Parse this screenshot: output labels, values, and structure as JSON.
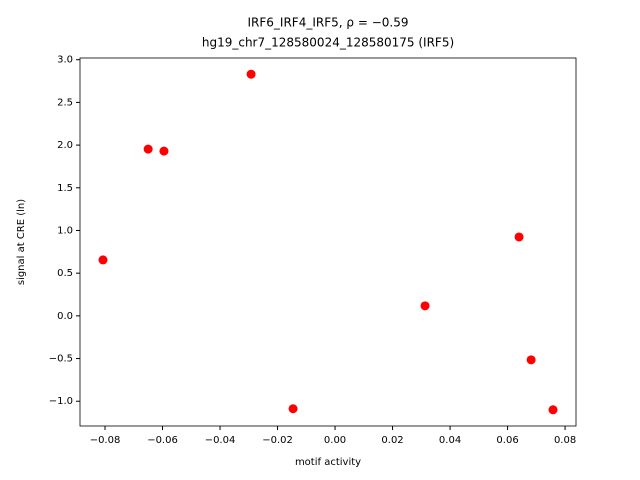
{
  "chart_data": {
    "type": "scatter",
    "title": "IRF6_IRF4_IRF5, ρ = −0.59",
    "subtitle": "hg19_chr7_128580024_128580175 (IRF5)",
    "x_label": "motif activity",
    "y_label": "signal at CRE (ln)",
    "color": "#ff0000",
    "x": [
      -0.0807,
      -0.065,
      -0.0595,
      -0.0292,
      -0.0146,
      0.0313,
      0.064,
      0.0682,
      0.0758
    ],
    "values": [
      0.655,
      1.953,
      1.93,
      2.83,
      -1.088,
      0.117,
      0.924,
      -0.515,
      -1.1
    ],
    "xlim": [
      -0.0887,
      0.0838
    ],
    "ylim": [
      -1.29,
      3.02
    ],
    "xticks": [
      {
        "value": -0.08,
        "label": "−0.08"
      },
      {
        "value": -0.06,
        "label": "−0.06"
      },
      {
        "value": -0.04,
        "label": "−0.04"
      },
      {
        "value": -0.02,
        "label": "−0.02"
      },
      {
        "value": 0,
        "label": "0.00"
      },
      0.02,
      0.04,
      0.06,
      0.08
    ],
    "yticks": [
      {
        "value": -1,
        "label": "−1.0"
      },
      {
        "value": -0.5,
        "label": "−0.5"
      },
      {
        "value": 0,
        "label": "0.0"
      },
      0.5,
      {
        "value": 1,
        "label": "1.0"
      },
      1.5,
      {
        "value": 2,
        "label": "2.0"
      },
      2.5,
      {
        "value": 3,
        "label": "3.0"
      }
    ]
  }
}
